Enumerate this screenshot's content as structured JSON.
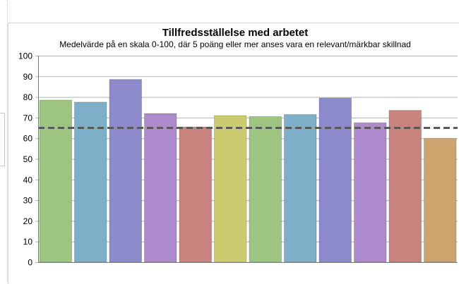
{
  "chart_data": {
    "type": "bar",
    "title": "Tillfredsställelse med arbetet",
    "subtitle": "Medelvärde på en skala 0-100, där 5 poäng eller mer anses vara en relevant/märkbar skillnad",
    "xlabel": "",
    "ylabel": "",
    "ylim": [
      0,
      100
    ],
    "yticks": [
      0,
      10,
      20,
      30,
      40,
      50,
      60,
      70,
      80,
      90,
      100
    ],
    "grid": true,
    "legend": "none",
    "values": [
      78.5,
      77.5,
      88.5,
      72,
      65.5,
      71,
      70.5,
      71.5,
      79.5,
      67.5,
      73.5,
      60
    ],
    "colors": [
      "#9dc57f",
      "#7eafc9",
      "#8d8acc",
      "#ad8acc",
      "#c9827e",
      "#cbcc6f",
      "#9dc57f",
      "#7eafc9",
      "#8d8acc",
      "#ad8acc",
      "#c9827e",
      "#cba46e"
    ],
    "reference_line": {
      "value": 65,
      "style": "dashed",
      "color": "#595959"
    }
  }
}
